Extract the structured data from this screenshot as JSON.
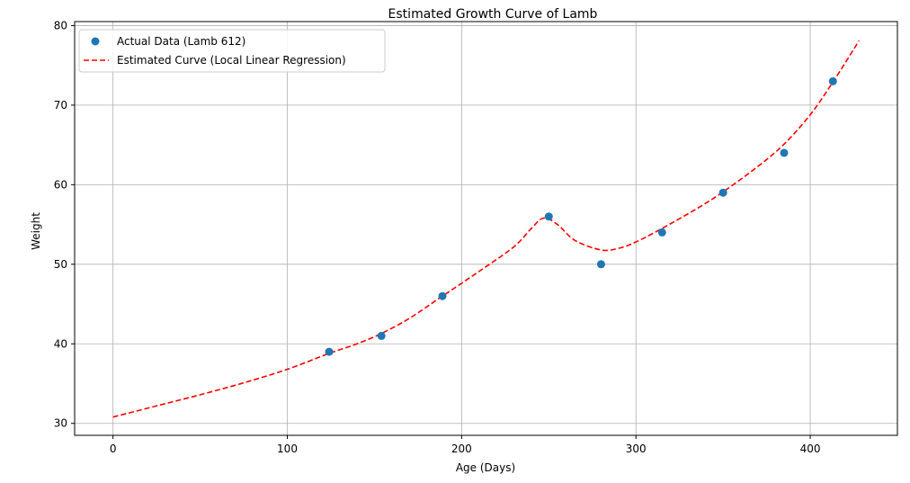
{
  "chart_data": {
    "type": "scatter",
    "title": "Estimated Growth Curve of Lamb",
    "xlabel": "Age (Days)",
    "ylabel": "Weight",
    "xlim": [
      -22,
      450
    ],
    "ylim": [
      28.5,
      80.5
    ],
    "xticks": [
      0,
      100,
      200,
      300,
      400
    ],
    "yticks": [
      30,
      40,
      50,
      60,
      70,
      80
    ],
    "grid": true,
    "legend_position": "top-left",
    "series": [
      {
        "name": "Actual Data (Lamb 612)",
        "kind": "points",
        "color": "#1f77b4",
        "x": [
          124,
          154,
          189,
          250,
          280,
          315,
          350,
          385,
          413
        ],
        "y": [
          39,
          41,
          46,
          56,
          50,
          54,
          59,
          64,
          73
        ]
      },
      {
        "name": "Estimated Curve (Local Linear Regression)",
        "kind": "dashed-line",
        "color": "#ff0000",
        "x": [
          0,
          25,
          50,
          75,
          100,
          124,
          140,
          154,
          170,
          189,
          210,
          230,
          240,
          247,
          255,
          265,
          280,
          290,
          300,
          315,
          335,
          350,
          370,
          385,
          400,
          413,
          428
        ],
        "y": [
          30.8,
          32.2,
          33.6,
          35.1,
          36.8,
          38.8,
          40.0,
          41.3,
          43.2,
          46.0,
          49.1,
          52.2,
          54.5,
          55.8,
          55.0,
          53.0,
          51.8,
          52.0,
          52.8,
          54.5,
          57.0,
          59.1,
          62.3,
          65.1,
          68.8,
          72.9,
          78.1
        ]
      }
    ]
  }
}
